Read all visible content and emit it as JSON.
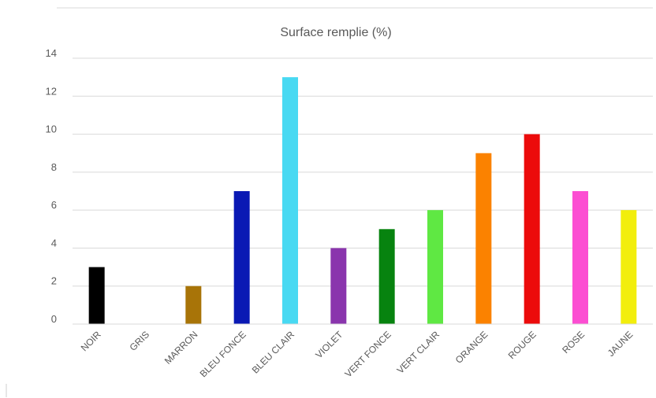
{
  "chart_data": {
    "type": "bar",
    "title": "Surface remplie (%)",
    "xlabel": "",
    "ylabel": "",
    "ylim": [
      0,
      14
    ],
    "yticks": [
      "0",
      "2",
      "4",
      "6",
      "8",
      "10",
      "12",
      "14"
    ],
    "grid": true,
    "legend": "none",
    "categories": [
      "NOIR",
      "GRIS",
      "MARRON",
      "BLEU FONCE",
      "BLEU CLAIR",
      "VIOLET",
      "VERT FONCE",
      "VERT CLAIR",
      "ORANGE",
      "ROUGE",
      "ROSE",
      "JAUNE"
    ],
    "values": [
      3,
      0,
      2,
      7,
      13,
      4,
      5,
      6,
      9,
      10,
      7,
      6
    ],
    "colors": [
      "#000000",
      "#808080",
      "#a87408",
      "#0a19b4",
      "#48d9f2",
      "#8a35ad",
      "#07830f",
      "#5fe843",
      "#fb8200",
      "#ec0b0b",
      "#fc4ed2",
      "#f2ee0c"
    ]
  }
}
